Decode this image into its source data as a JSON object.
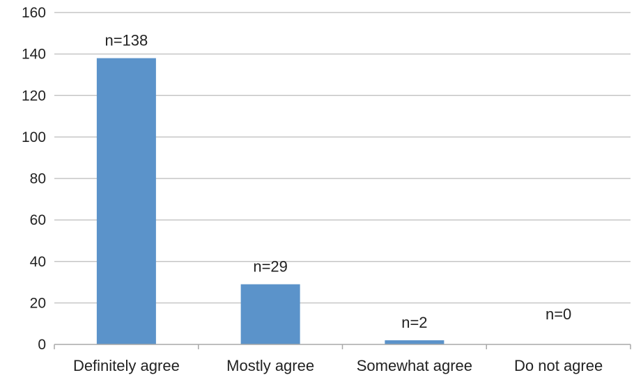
{
  "chart_data": {
    "type": "bar",
    "title": "",
    "xlabel": "",
    "ylabel": "",
    "categories": [
      "Definitely agree",
      "Mostly agree",
      "Somewhat agree",
      "Do not agree"
    ],
    "values": [
      138,
      29,
      2,
      0
    ],
    "data_labels": [
      "n=138",
      "n=29",
      "n=2",
      "n=0"
    ],
    "ylim": [
      0,
      160
    ],
    "yticks": [
      0,
      20,
      40,
      60,
      80,
      100,
      120,
      140,
      160
    ],
    "grid": true,
    "legend": "none",
    "bar_color": "#5b93ca"
  }
}
